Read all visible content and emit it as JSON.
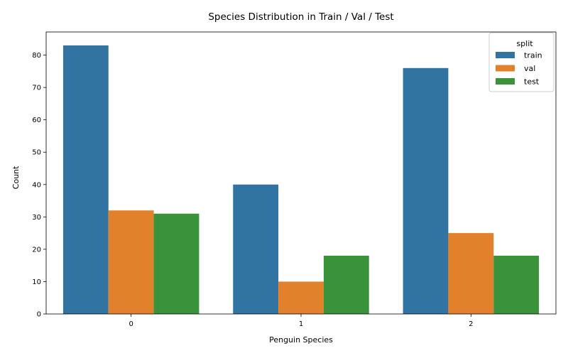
{
  "chart_data": {
    "type": "bar",
    "title": "Species Distribution in Train / Val / Test",
    "xlabel": "Penguin Species",
    "ylabel": "Count",
    "categories": [
      "0",
      "1",
      "2"
    ],
    "series": [
      {
        "name": "train",
        "values": [
          83,
          40,
          76
        ],
        "color": "#3274a1"
      },
      {
        "name": "val",
        "values": [
          32,
          10,
          25
        ],
        "color": "#e1812c"
      },
      {
        "name": "test",
        "values": [
          31,
          18,
          18
        ],
        "color": "#3a923a"
      }
    ],
    "ylim": [
      0,
      87.15
    ],
    "yticks": [
      0,
      10,
      20,
      30,
      40,
      50,
      60,
      70,
      80
    ],
    "grid": false,
    "legend": {
      "title": "split",
      "position": "top-right"
    }
  }
}
